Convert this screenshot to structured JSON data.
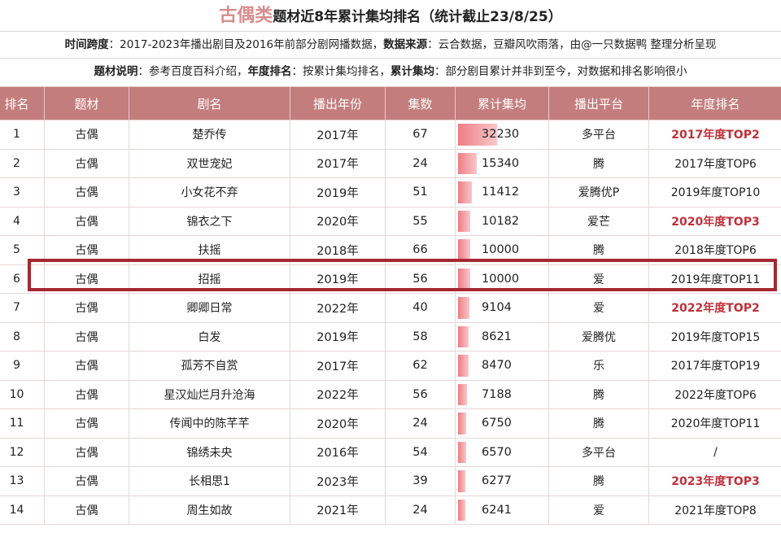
{
  "title": {
    "accent": "古偶类",
    "main": "题材近8年累计集均排名（统计截止23/8/25）"
  },
  "info1": [
    {
      "k": "时间跨度",
      "v": "：2017-2023年播出剧目及2016年前部分剧网播数据，"
    },
    {
      "k": "数据来源",
      "v": "：云合数据，豆瓣风吹雨落，由@一只数据鸭 整理分析呈现"
    }
  ],
  "info2": [
    {
      "k": "题材说明",
      "v": "：参考百度百科介绍，"
    },
    {
      "k": "年度排名",
      "v": "：按累计集均排名，"
    },
    {
      "k": "累计集均",
      "v": "：部分剧目累计并非到至今，对数据和排名影响很小"
    }
  ],
  "columns": [
    "排名",
    "题材",
    "剧名",
    "播出年份",
    "集数",
    "累计集均",
    "播出平台",
    "年度排名"
  ],
  "rows": [
    {
      "rank": "1",
      "genre": "古偶",
      "name": "楚乔传",
      "year": "2017年",
      "eps": "67",
      "avg": 32230,
      "platform": "多平台",
      "annual": "2017年度TOP2",
      "hot": true
    },
    {
      "rank": "2",
      "genre": "古偶",
      "name": "双世宠妃",
      "year": "2017年",
      "eps": "24",
      "avg": 15340,
      "platform": "腾",
      "annual": "2017年度TOP6",
      "hot": false
    },
    {
      "rank": "3",
      "genre": "古偶",
      "name": "小女花不弃",
      "year": "2019年",
      "eps": "51",
      "avg": 11412,
      "platform": "爱腾优P",
      "annual": "2019年度TOP10",
      "hot": false
    },
    {
      "rank": "4",
      "genre": "古偶",
      "name": "锦衣之下",
      "year": "2020年",
      "eps": "55",
      "avg": 10182,
      "platform": "爱芒",
      "annual": "2020年度TOP3",
      "hot": true
    },
    {
      "rank": "5",
      "genre": "古偶",
      "name": "扶摇",
      "year": "2018年",
      "eps": "66",
      "avg": 10000,
      "platform": "腾",
      "annual": "2018年度TOP6",
      "hot": false
    },
    {
      "rank": "6",
      "genre": "古偶",
      "name": "招摇",
      "year": "2019年",
      "eps": "56",
      "avg": 10000,
      "platform": "爱",
      "annual": "2019年度TOP11",
      "hot": false
    },
    {
      "rank": "7",
      "genre": "古偶",
      "name": "卿卿日常",
      "year": "2022年",
      "eps": "40",
      "avg": 9104,
      "platform": "爱",
      "annual": "2022年度TOP2",
      "hot": true
    },
    {
      "rank": "8",
      "genre": "古偶",
      "name": "白发",
      "year": "2019年",
      "eps": "58",
      "avg": 8621,
      "platform": "爱腾优",
      "annual": "2019年度TOP15",
      "hot": false
    },
    {
      "rank": "9",
      "genre": "古偶",
      "name": "孤芳不自赏",
      "year": "2017年",
      "eps": "62",
      "avg": 8470,
      "platform": "乐",
      "annual": "2017年度TOP19",
      "hot": false
    },
    {
      "rank": "10",
      "genre": "古偶",
      "name": "星汉灿烂月升沧海",
      "year": "2022年",
      "eps": "56",
      "avg": 7188,
      "platform": "腾",
      "annual": "2022年度TOP6",
      "hot": false
    },
    {
      "rank": "11",
      "genre": "古偶",
      "name": "传闻中的陈芊芊",
      "year": "2020年",
      "eps": "24",
      "avg": 6750,
      "platform": "腾",
      "annual": "2020年度TOP11",
      "hot": false
    },
    {
      "rank": "12",
      "genre": "古偶",
      "name": "锦绣未央",
      "year": "2016年",
      "eps": "54",
      "avg": 6570,
      "platform": "多平台",
      "annual": "/",
      "hot": false
    },
    {
      "rank": "13",
      "genre": "古偶",
      "name": "长相思1",
      "year": "2023年",
      "eps": "39",
      "avg": 6277,
      "platform": "腾",
      "annual": "2023年度TOP3",
      "hot": true
    },
    {
      "rank": "14",
      "genre": "古偶",
      "name": "周生如故",
      "year": "2021年",
      "eps": "24",
      "avg": 6241,
      "platform": "爱",
      "annual": "2021年度TOP8",
      "hot": false
    }
  ],
  "highlighted_rank": "6",
  "colors": {
    "header_bg": "#c47d7d",
    "bar_start": "#ef7d85",
    "bar_end": "#f8c7ca",
    "hot_text": "#c0303a",
    "highlight_border": "#a52832",
    "title_accent": "#d98d8d"
  }
}
